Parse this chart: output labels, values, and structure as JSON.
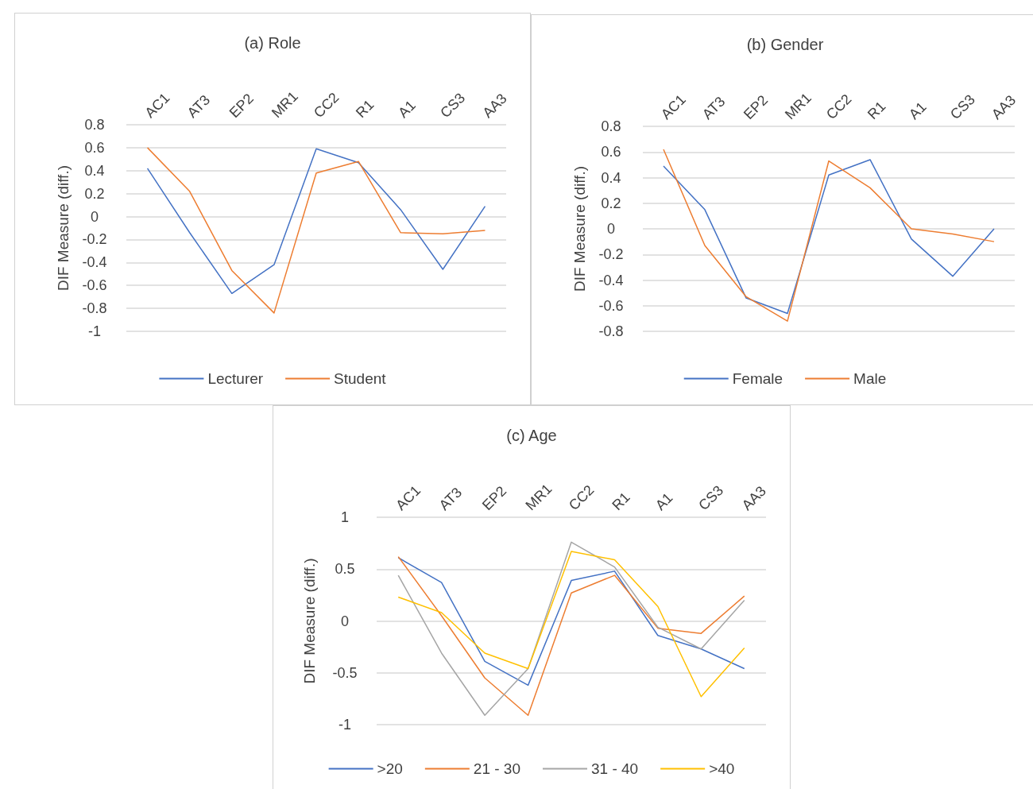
{
  "chart_data": [
    {
      "type": "line",
      "title": "(a) Role",
      "ylabel": "DIF Measure (diff.)",
      "categories": [
        "AC1",
        "AT3",
        "EP2",
        "MR1",
        "CC2",
        "R1",
        "A1",
        "CS3",
        "AA3"
      ],
      "ylim": [
        -1,
        0.8
      ],
      "yticks": [
        -1,
        -0.8,
        -0.6,
        -0.4,
        -0.2,
        0,
        0.2,
        0.4,
        0.6,
        0.8
      ],
      "grid": "y",
      "legend": "bottom",
      "marker": "none",
      "line_style": "solid",
      "series": [
        {
          "name": "Lecturer",
          "color": "#4472c4",
          "values": [
            0.42,
            -0.14,
            -0.67,
            -0.42,
            0.59,
            0.47,
            0.06,
            -0.46,
            0.09
          ]
        },
        {
          "name": "Student",
          "color": "#ed7d31",
          "values": [
            0.6,
            0.22,
            -0.47,
            -0.84,
            0.38,
            0.48,
            -0.14,
            -0.15,
            -0.12
          ]
        }
      ]
    },
    {
      "type": "line",
      "title": "(b) Gender",
      "ylabel": "DIF Measure (diff.)",
      "categories": [
        "AC1",
        "AT3",
        "EP2",
        "MR1",
        "CC2",
        "R1",
        "A1",
        "CS3",
        "AA3"
      ],
      "ylim": [
        -0.8,
        0.8
      ],
      "yticks": [
        -0.8,
        -0.6,
        -0.4,
        -0.2,
        0,
        0.2,
        0.4,
        0.6,
        0.8
      ],
      "grid": "y",
      "legend": "bottom",
      "marker": "none",
      "line_style": "solid",
      "series": [
        {
          "name": "Female",
          "color": "#4472c4",
          "values": [
            0.49,
            0.15,
            -0.54,
            -0.66,
            0.42,
            0.54,
            -0.08,
            -0.37,
            0.0
          ]
        },
        {
          "name": "Male",
          "color": "#ed7d31",
          "values": [
            0.62,
            -0.13,
            -0.53,
            -0.72,
            0.53,
            0.32,
            0.0,
            -0.04,
            -0.1
          ]
        }
      ]
    },
    {
      "type": "line",
      "title": "(c) Age",
      "ylabel": "DIF Measure (diff.)",
      "categories": [
        "AC1",
        "AT3",
        "EP2",
        "MR1",
        "CC2",
        "R1",
        "A1",
        "CS3",
        "AA3"
      ],
      "ylim": [
        -1,
        1
      ],
      "yticks": [
        -1,
        -0.5,
        0,
        0.5,
        1
      ],
      "grid": "y",
      "legend": "bottom",
      "marker": "none",
      "line_style": "solid",
      "series": [
        {
          "name": ">20",
          "color": "#4472c4",
          "values": [
            0.61,
            0.37,
            -0.39,
            -0.62,
            0.39,
            0.48,
            -0.14,
            -0.27,
            -0.46
          ]
        },
        {
          "name": "21 - 30",
          "color": "#ed7d31",
          "values": [
            0.62,
            0.05,
            -0.55,
            -0.91,
            0.27,
            0.44,
            -0.07,
            -0.12,
            0.24
          ]
        },
        {
          "name": "31 - 40",
          "color": "#a5a5a5",
          "values": [
            0.44,
            -0.31,
            -0.91,
            -0.46,
            0.76,
            0.52,
            -0.06,
            -0.27,
            0.2
          ]
        },
        {
          "name": ">40",
          "color": "#ffc000",
          "values": [
            0.23,
            0.08,
            -0.31,
            -0.46,
            0.67,
            0.59,
            0.14,
            -0.73,
            -0.26
          ]
        }
      ]
    }
  ]
}
